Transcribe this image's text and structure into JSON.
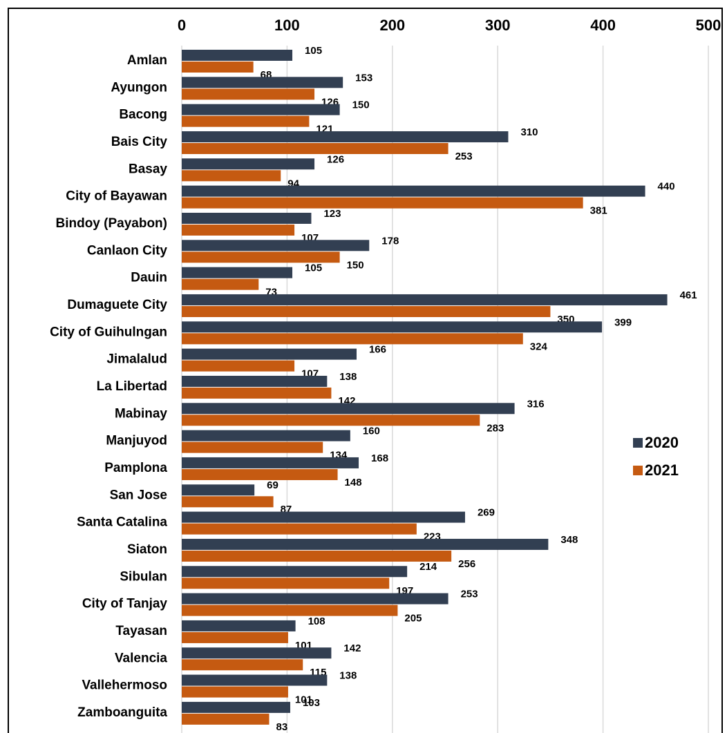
{
  "chart_data": {
    "type": "bar",
    "orientation": "horizontal",
    "categories": [
      "Amlan",
      "Ayungon",
      "Bacong",
      "Bais City",
      "Basay",
      "City of Bayawan",
      "Bindoy (Payabon)",
      "Canlaon City",
      "Dauin",
      "Dumaguete City",
      "City of Guihulngan",
      "Jimalalud",
      "La Libertad",
      "Mabinay",
      "Manjuyod",
      "Pamplona",
      "San Jose",
      "Santa Catalina",
      "Siaton",
      "Sibulan",
      "City of Tanjay",
      "Tayasan",
      "Valencia",
      "Vallehermoso",
      "Zamboanguita"
    ],
    "series": [
      {
        "name": "2020",
        "color": "#323f52",
        "values": [
          105,
          153,
          150,
          310,
          126,
          440,
          123,
          178,
          105,
          461,
          399,
          166,
          138,
          316,
          160,
          168,
          69,
          269,
          348,
          214,
          253,
          108,
          142,
          138,
          103
        ]
      },
      {
        "name": "2021",
        "color": "#c55a11",
        "values": [
          68,
          126,
          121,
          253,
          94,
          381,
          107,
          150,
          73,
          350,
          324,
          107,
          142,
          283,
          134,
          148,
          87,
          223,
          256,
          197,
          205,
          101,
          115,
          101,
          83
        ]
      }
    ],
    "xlim": [
      0,
      500
    ],
    "xticks": [
      0,
      100,
      200,
      300,
      400,
      500
    ],
    "grid": true,
    "legend": "right"
  }
}
